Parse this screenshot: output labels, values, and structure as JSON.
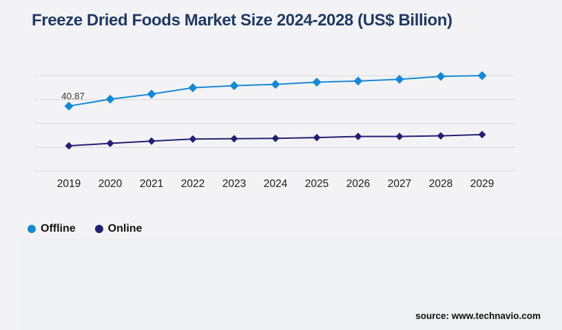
{
  "title": "Freeze Dried Foods Market Size 2024-2028 (US$ Billion)",
  "source_text": "source: www.technavio.com",
  "colors": {
    "background": "#f3f3f5",
    "lower_panel": "#eff0f1",
    "title": "#1f3a63",
    "grid": "#d8d8da",
    "axis_text": "#1a1a1a",
    "annotation_text": "#3a3a3a",
    "offline": "#1589d3",
    "online": "#221f72"
  },
  "chart_data": {
    "type": "line",
    "title": "Freeze Dried Foods Market Size 2024-2028 (US$ Billion)",
    "categories": [
      "2019",
      "2020",
      "2021",
      "2022",
      "2023",
      "2024",
      "2025",
      "2026",
      "2027",
      "2028",
      "2029"
    ],
    "series": [
      {
        "name": "Offline",
        "color": "#1589d3",
        "values": [
          40.87,
          45.2,
          48.4,
          52.4,
          53.7,
          54.5,
          55.9,
          56.6,
          57.7,
          59.5,
          60.0
        ]
      },
      {
        "name": "Online",
        "color": "#221f72",
        "values": [
          15.9,
          17.5,
          18.9,
          20.2,
          20.4,
          20.6,
          21.1,
          21.8,
          21.8,
          22.2,
          23.0
        ]
      }
    ],
    "annotations": [
      {
        "series": 0,
        "index": 0,
        "text": "40.87"
      }
    ],
    "xlabel": "",
    "ylabel": "",
    "ylim": [
      0,
      60
    ],
    "grid_step": 15,
    "grid": true,
    "marker": "diamond",
    "legend_position": "bottom-left"
  }
}
